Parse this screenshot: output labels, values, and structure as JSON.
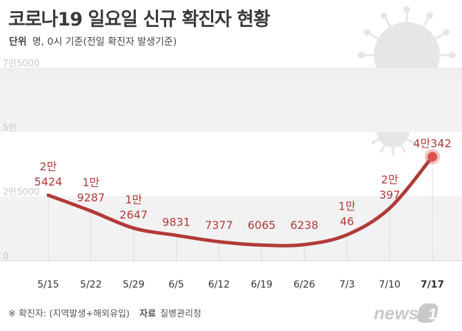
{
  "title": "코로나19 일요일 신규 확진자 현황",
  "unit": {
    "label": "단위",
    "text": "명, 0시 기준(전일 확진자 발생기준)"
  },
  "footer": {
    "note": "※ 확진자: (지역발생+해외유입)",
    "source_label": "자료",
    "source": "질병관리청"
  },
  "logo_text": "news1",
  "colors": {
    "line": "#b23a3a",
    "point": "#d9544f",
    "grid_band": "#f2f2f2",
    "virus": "#e6e6e6"
  },
  "chart_data": {
    "type": "line",
    "title": "코로나19 일요일 신규 확진자 현황",
    "categories": [
      "5/15",
      "5/22",
      "5/29",
      "6/5",
      "6/12",
      "6/19",
      "6/26",
      "7/3",
      "7/10",
      "7/17"
    ],
    "values": [
      25424,
      19287,
      12647,
      9831,
      7377,
      6065,
      6238,
      10046,
      20397,
      40342
    ],
    "labels": [
      [
        "2만",
        "5424"
      ],
      [
        "1만",
        "9287"
      ],
      [
        "1만",
        "2647"
      ],
      [
        "9831"
      ],
      [
        "7377"
      ],
      [
        "6065"
      ],
      [
        "6238"
      ],
      [
        "1만",
        "46"
      ],
      [
        "2만",
        "397"
      ],
      [
        "4만342"
      ]
    ],
    "y_ticks": [
      {
        "value": 0,
        "label": "0"
      },
      {
        "value": 25000,
        "label": "2만5000"
      },
      {
        "value": 50000,
        "label": "5만"
      },
      {
        "value": 75000,
        "label": "7만5000"
      }
    ],
    "ylim": [
      0,
      75000
    ],
    "grid": true
  }
}
